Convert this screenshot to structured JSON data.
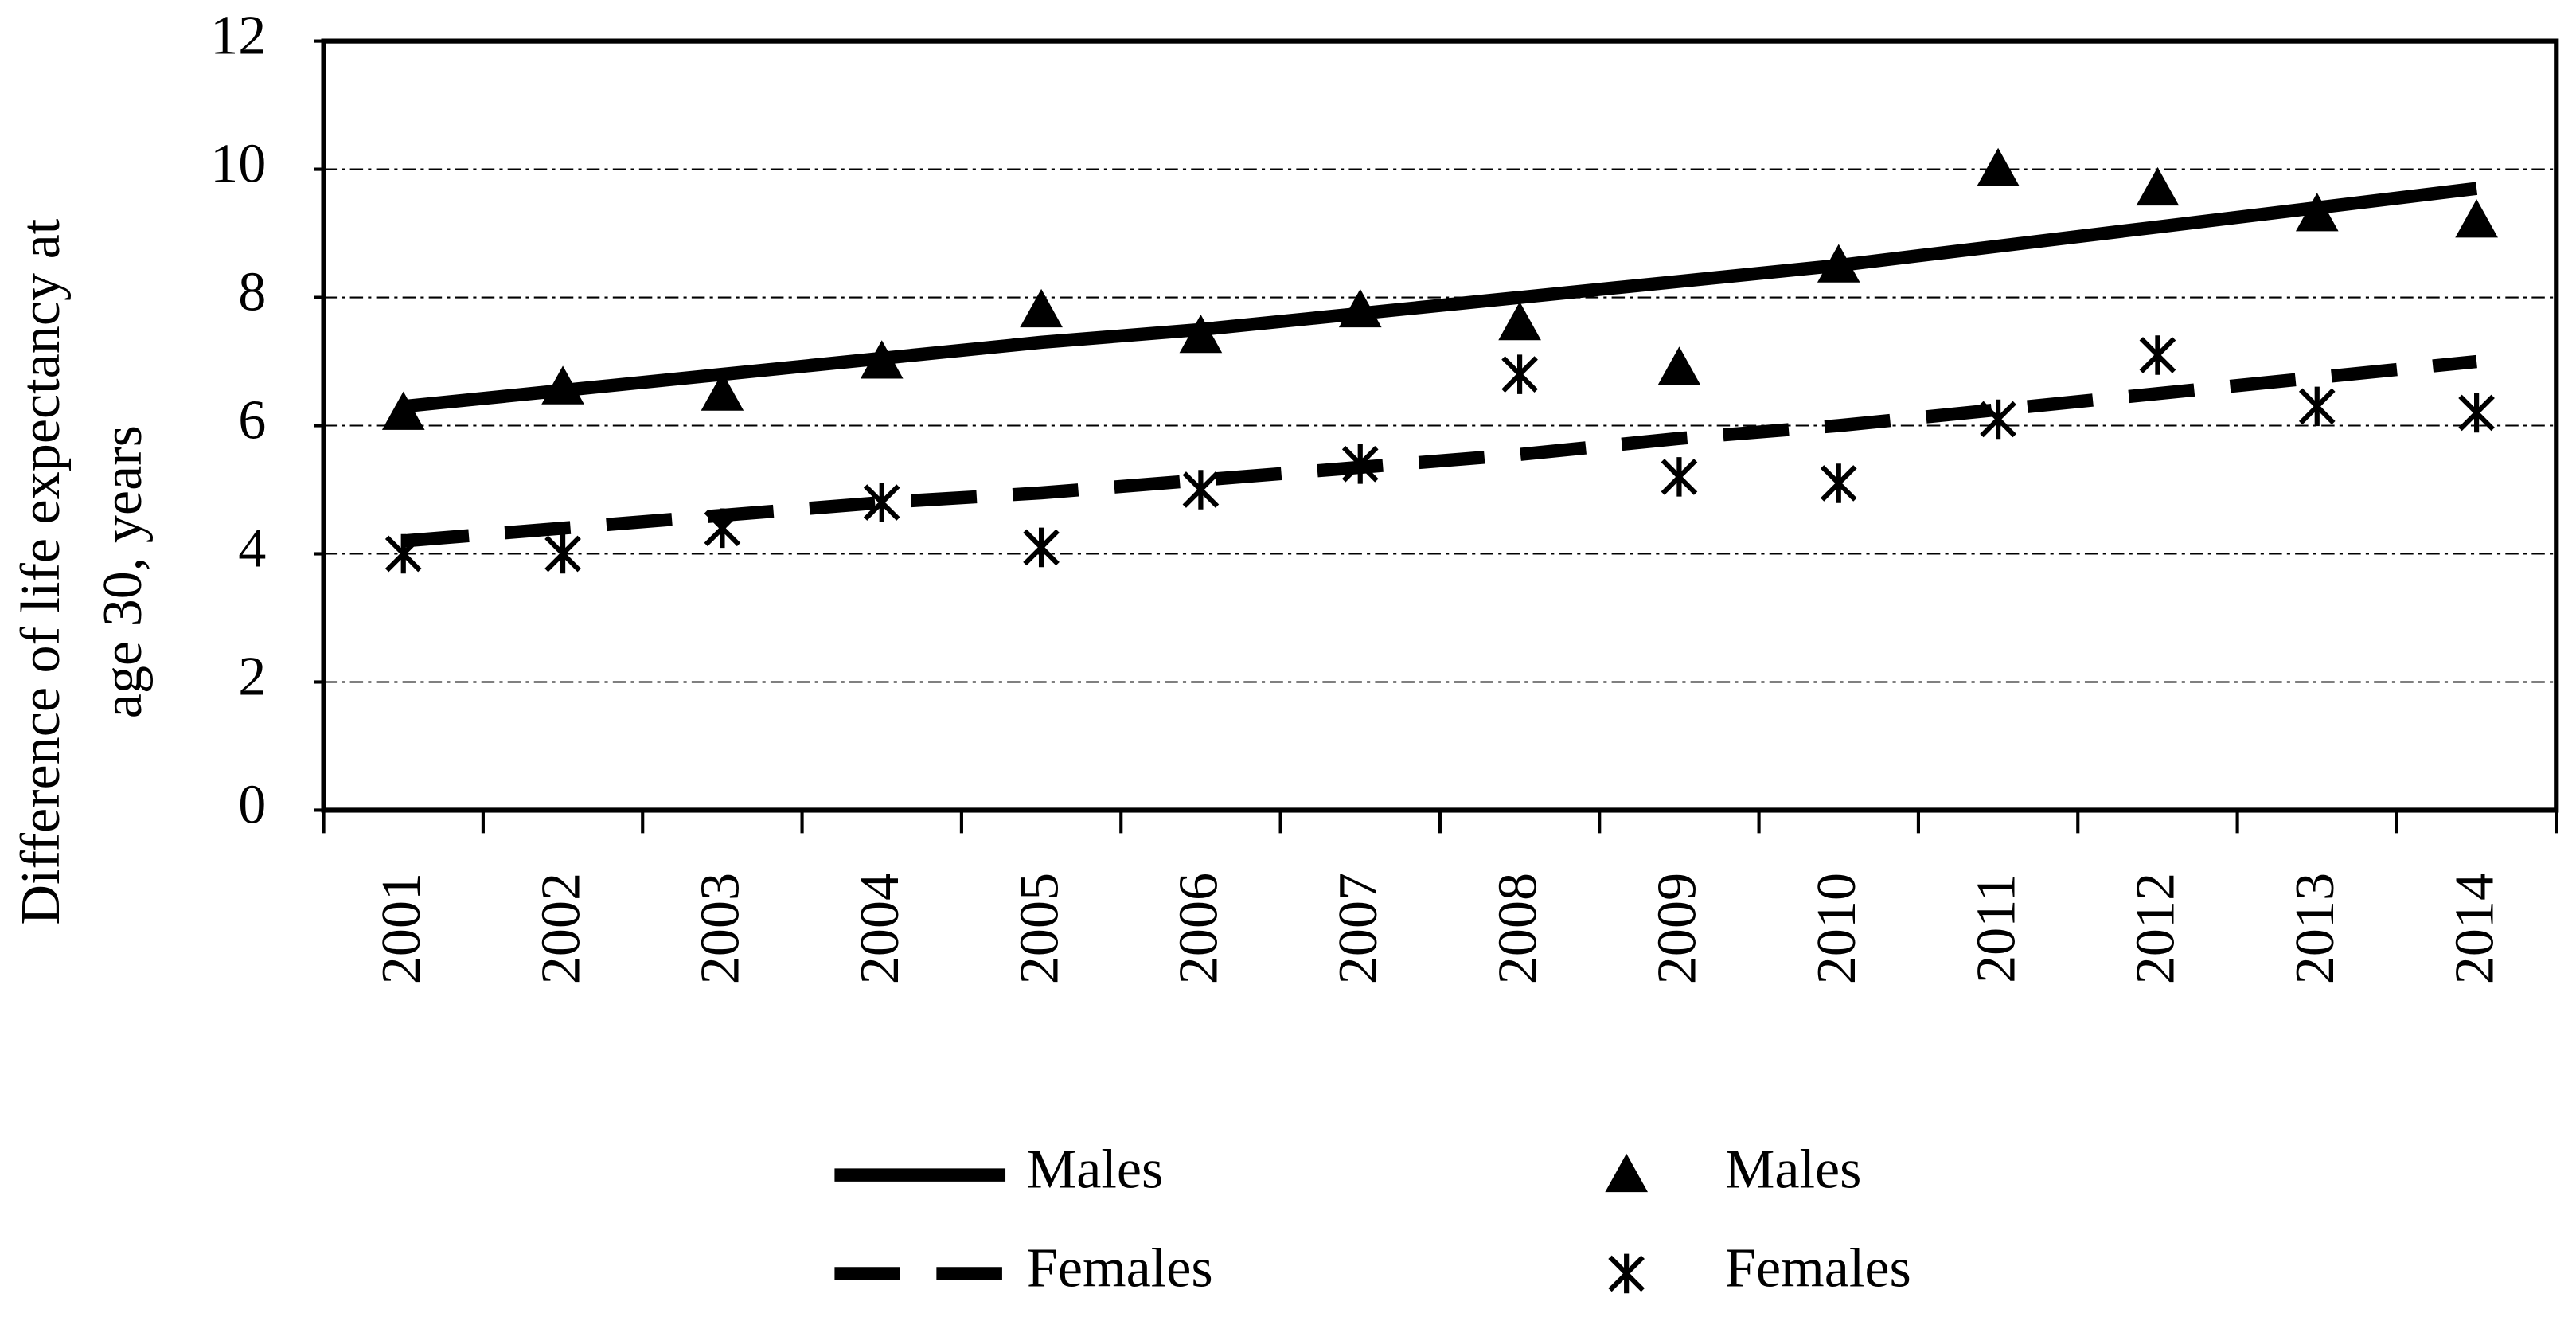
{
  "chart_data": {
    "type": "line",
    "y_label": [
      "Difference of life expectancy at",
      "age 30, years"
    ],
    "categories": [
      "2001",
      "2002",
      "2003",
      "2004",
      "2005",
      "2006",
      "2007",
      "2008",
      "2009",
      "2010",
      "2011",
      "2012",
      "2013",
      "2014"
    ],
    "ylim": [
      0,
      12
    ],
    "yticks": [
      0,
      2,
      4,
      6,
      8,
      10,
      12
    ],
    "grid": true,
    "series": [
      {
        "name": "Males",
        "color": "#000000",
        "style": "solid-line",
        "values": [
          6.3,
          6.55,
          6.8,
          7.05,
          7.3,
          7.5,
          7.75,
          8.0,
          8.25,
          8.5,
          8.8,
          9.1,
          9.4,
          9.7
        ]
      },
      {
        "name": "Females",
        "color": "#000000",
        "style": "dashed-line",
        "values": [
          4.2,
          4.4,
          4.6,
          4.8,
          4.95,
          5.15,
          5.35,
          5.55,
          5.8,
          6.0,
          6.25,
          6.5,
          6.75,
          7.0
        ]
      },
      {
        "name": "Males",
        "color": "#000000",
        "style": "triangle",
        "values": [
          6.2,
          6.6,
          6.5,
          7.0,
          7.8,
          7.4,
          7.8,
          7.6,
          6.9,
          8.5,
          10.0,
          9.7,
          9.3,
          9.2
        ]
      },
      {
        "name": "Females",
        "color": "#000000",
        "style": "star",
        "values": [
          4.0,
          4.0,
          4.4,
          4.8,
          4.1,
          5.0,
          5.4,
          6.8,
          5.2,
          5.1,
          6.1,
          7.1,
          6.3,
          6.2
        ]
      }
    ]
  }
}
